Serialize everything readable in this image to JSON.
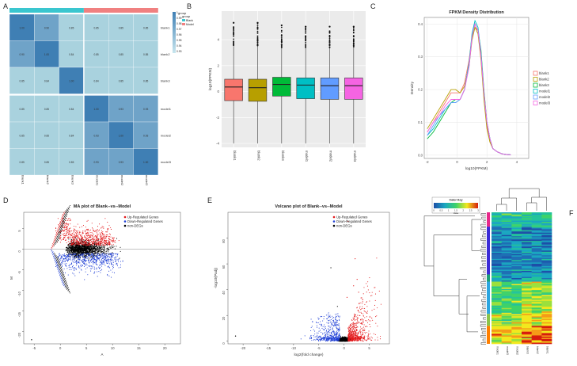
{
  "panels": {
    "A": "A",
    "B": "B",
    "C": "C",
    "D": "D",
    "E": "E",
    "F": "F"
  },
  "colors": {
    "heat_dark": "#4a86b8",
    "heat_mid": "#6fa3c8",
    "heat_light": "#a9d2de",
    "blank": "#3ac6cf",
    "model": "#f08080",
    "up": "#e31a1c",
    "down": "#1f3fd6",
    "non": "#000000",
    "box_fill": [
      "#f8766d",
      "#b79f00",
      "#00ba38",
      "#00bfc4",
      "#619cff",
      "#f564e3"
    ]
  },
  "chart_data": [
    {
      "id": "A",
      "type": "heatmap",
      "title": "",
      "rows": [
        "blank1",
        "blank2",
        "blank3",
        "model1",
        "model2",
        "model3"
      ],
      "cols": [
        "blank1",
        "blank2",
        "blank3",
        "model1",
        "model2",
        "model3"
      ],
      "values": [
        [
          "1.00",
          "0.90",
          "0.85",
          "0.85",
          "0.85",
          "0.85"
        ],
        [
          "0.90",
          "1.00",
          "0.84",
          "0.85",
          "0.85",
          "0.85"
        ],
        [
          "0.85",
          "0.84",
          "1.00",
          "0.84",
          "0.85",
          "0.85"
        ],
        [
          "0.85",
          "0.85",
          "0.84",
          "1.00",
          "0.93",
          "0.93"
        ],
        [
          "0.85",
          "0.85",
          "0.84",
          "0.93",
          "1.00",
          "0.93"
        ],
        [
          "0.85",
          "0.85",
          "0.85",
          "0.93",
          "0.93",
          "1.00"
        ]
      ],
      "legend_title": "group",
      "legend_entries": [
        "Blank",
        "Model"
      ],
      "scale_title": "group",
      "scale_ticks": [
        "1",
        "0.99",
        "0.98",
        "0.97",
        "0.96",
        "0.95",
        "0.94",
        "0.93"
      ]
    },
    {
      "id": "B",
      "type": "box",
      "categories": [
        "blank1",
        "blank2",
        "blank3",
        "model1",
        "model2",
        "model3"
      ],
      "ylabel": "log10(FPKM)",
      "ylim": [
        -4.3,
        6.2
      ],
      "yticks": [
        -4,
        -2,
        0,
        2,
        4
      ],
      "q1": [
        -0.7,
        -0.75,
        -0.35,
        -0.55,
        -0.6,
        -0.6
      ],
      "median": [
        0.35,
        0.3,
        0.55,
        0.5,
        0.45,
        0.45
      ],
      "q3": [
        0.95,
        0.95,
        1.1,
        1.05,
        1.05,
        1.05
      ],
      "whisker_low": [
        -4.0,
        -4.0,
        -4.0,
        -4.0,
        -4.0,
        -4.0
      ],
      "whisker_high": [
        3.5,
        3.5,
        3.4,
        3.4,
        3.4,
        3.4
      ],
      "outlier_max": [
        5.3,
        5.3,
        5.1,
        5.0,
        5.0,
        5.0
      ]
    },
    {
      "id": "C",
      "type": "line",
      "title": "FPKM Density Distribution",
      "xlabel": "log10(FPKM)",
      "ylabel": "Density",
      "xlim": [
        -2.2,
        4.8
      ],
      "ylim": [
        -0.01,
        0.42
      ],
      "xticks": [
        -2,
        0,
        2,
        4
      ],
      "yticks": [
        0.0,
        0.1,
        0.2,
        0.3,
        0.4
      ],
      "x": [
        -2.0,
        -1.6,
        -1.2,
        -0.8,
        -0.4,
        -0.1,
        0.2,
        0.5,
        0.8,
        1.0,
        1.2,
        1.4,
        1.6,
        1.8,
        2.0,
        2.2,
        2.4,
        2.7,
        3.0,
        3.3,
        3.6
      ],
      "series": [
        {
          "name": "blank1",
          "color": "#f8766d",
          "values": [
            0.07,
            0.1,
            0.13,
            0.16,
            0.19,
            0.19,
            0.19,
            0.22,
            0.29,
            0.36,
            0.39,
            0.38,
            0.3,
            0.18,
            0.09,
            0.04,
            0.02,
            0.01,
            0.004,
            0.002,
            0.001
          ]
        },
        {
          "name": "blank2",
          "color": "#b79f00",
          "values": [
            0.08,
            0.11,
            0.14,
            0.17,
            0.2,
            0.2,
            0.19,
            0.21,
            0.27,
            0.35,
            0.39,
            0.37,
            0.29,
            0.17,
            0.08,
            0.04,
            0.02,
            0.01,
            0.004,
            0.002,
            0.001
          ]
        },
        {
          "name": "blank3",
          "color": "#00ba38",
          "values": [
            0.05,
            0.07,
            0.1,
            0.13,
            0.16,
            0.17,
            0.17,
            0.2,
            0.28,
            0.36,
            0.4,
            0.38,
            0.32,
            0.2,
            0.1,
            0.05,
            0.02,
            0.01,
            0.004,
            0.002,
            0.001
          ]
        },
        {
          "name": "model1",
          "color": "#00bfc4",
          "values": [
            0.06,
            0.08,
            0.11,
            0.14,
            0.16,
            0.16,
            0.17,
            0.2,
            0.28,
            0.37,
            0.41,
            0.39,
            0.31,
            0.19,
            0.1,
            0.05,
            0.02,
            0.01,
            0.004,
            0.002,
            0.001
          ]
        },
        {
          "name": "model2",
          "color": "#619cff",
          "values": [
            0.06,
            0.09,
            0.12,
            0.14,
            0.16,
            0.16,
            0.17,
            0.2,
            0.27,
            0.36,
            0.4,
            0.38,
            0.31,
            0.19,
            0.1,
            0.05,
            0.02,
            0.01,
            0.004,
            0.002,
            0.001
          ]
        },
        {
          "name": "model3",
          "color": "#f564e3",
          "values": [
            0.07,
            0.1,
            0.12,
            0.15,
            0.17,
            0.17,
            0.17,
            0.2,
            0.27,
            0.36,
            0.4,
            0.38,
            0.3,
            0.19,
            0.1,
            0.05,
            0.02,
            0.01,
            0.004,
            0.002,
            0.001
          ]
        }
      ],
      "legend_position": "right"
    },
    {
      "id": "D",
      "type": "scatter",
      "title": "MA plot of Blank--vs--Model",
      "xlabel": "A",
      "ylabel": "M",
      "xlim": [
        -7,
        23
      ],
      "ylim": [
        -23,
        9
      ],
      "xticks": [
        -5,
        0,
        5,
        10,
        15,
        20
      ],
      "yticks": [
        -20,
        -15,
        -10,
        -5,
        0,
        5
      ],
      "legend_entries": [
        "Up-Regulated Genes",
        "Down-Regulated Genes",
        "non-DEGs"
      ],
      "legend_position": "top-left",
      "outlier_point": [
        -5.5,
        -22
      ]
    },
    {
      "id": "E",
      "type": "scatter",
      "title": "Volcano plot of Blank--vs--Model",
      "xlabel": "log2(fold change)",
      "ylabel": "-log10(Padj)",
      "xlim": [
        -23,
        9
      ],
      "ylim": [
        -2,
        100
      ],
      "xticks": [
        -20,
        -15,
        -10,
        -5,
        0,
        5
      ],
      "yticks": [
        0,
        20,
        40,
        60,
        80
      ],
      "legend_entries": [
        "Up-Regulated Genes",
        "Down-Regulated Genes",
        "non-DEGs"
      ],
      "legend_position": "top-left",
      "outlier_point": [
        -21.5,
        4
      ]
    },
    {
      "id": "F",
      "type": "heatmap",
      "title": "",
      "legend_title": "Color Key",
      "legend_subtitle": "Value",
      "scale_ticks": [
        "0",
        "0.5",
        "1",
        "1.5",
        "2",
        "2.5",
        "3"
      ],
      "cols": [
        "model1",
        "model3",
        "model2",
        "blank3",
        "blank2",
        "blank1"
      ]
    }
  ]
}
